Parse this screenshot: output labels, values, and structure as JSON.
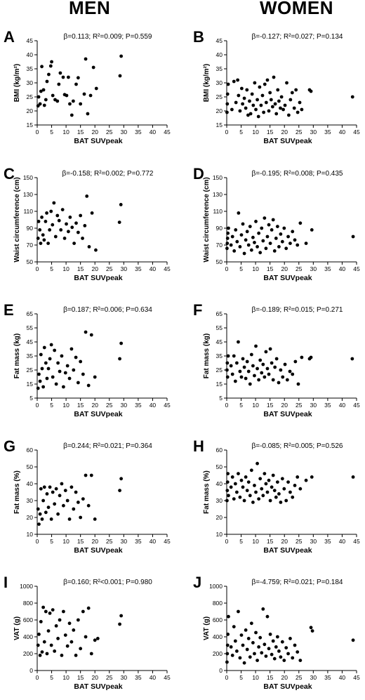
{
  "headers": {
    "men": "MEN",
    "women": "WOMEN"
  },
  "chart_data": [
    {
      "panel": "A",
      "group": "men",
      "type": "scatter",
      "stats": "β=0.113; R²=0.009; P=0.559",
      "ylabel": "BMI (kg/m²)",
      "xlabel": "BAT SUVpeak",
      "xlim": [
        0,
        45
      ],
      "xticks": [
        0,
        5,
        10,
        15,
        20,
        25,
        30,
        35,
        40,
        45
      ],
      "ylim": [
        15,
        45
      ],
      "yticks": [
        15,
        20,
        25,
        30,
        35,
        40,
        45
      ],
      "x": [
        0.3,
        0.5,
        1.0,
        1.3,
        1.6,
        2.2,
        2.5,
        3.0,
        3.4,
        4.0,
        4.7,
        5.0,
        5.4,
        6.2,
        7.0,
        7.5,
        8.0,
        9.0,
        9.5,
        10.2,
        10.8,
        11.3,
        12.0,
        12.5,
        13.5,
        14.2,
        15.0,
        16.3,
        16.8,
        17.5,
        18.5,
        19.5,
        20.5,
        28.7,
        29.1
      ],
      "y": [
        21.8,
        25.0,
        22.5,
        27.0,
        35.8,
        27.5,
        22.0,
        24.0,
        30.5,
        33.0,
        36.0,
        37.5,
        25.5,
        24.0,
        23.5,
        29.5,
        33.5,
        32.0,
        25.8,
        25.5,
        32.0,
        22.5,
        18.5,
        23.5,
        29.5,
        31.8,
        22.5,
        26.0,
        38.5,
        19.0,
        25.5,
        35.5,
        28.0,
        32.5,
        39.5
      ]
    },
    {
      "panel": "B",
      "group": "women",
      "type": "scatter",
      "stats": "β=-0.127; R²=0.027; P=0.134",
      "ylabel": "BMI (kg/m²)",
      "xlabel": "BAT SUVpeak",
      "xlim": [
        0,
        45
      ],
      "xticks": [
        0,
        5,
        10,
        15,
        20,
        25,
        30,
        35,
        40,
        45
      ],
      "ylim": [
        15,
        45
      ],
      "yticks": [
        15,
        20,
        25,
        30,
        35,
        40,
        45
      ],
      "x": [
        0.1,
        0.2,
        0.3,
        0.5,
        1.8,
        2.5,
        3.2,
        3.8,
        4.1,
        4.6,
        5.2,
        5.5,
        6.1,
        6.6,
        7.0,
        7.4,
        7.9,
        8.3,
        8.8,
        9.2,
        9.7,
        10.1,
        10.6,
        11.0,
        11.4,
        11.9,
        12.4,
        12.8,
        13.2,
        13.7,
        14.1,
        14.6,
        15.0,
        15.4,
        15.9,
        16.3,
        16.8,
        17.2,
        17.7,
        18.1,
        18.6,
        19.0,
        19.6,
        20.2,
        20.8,
        21.5,
        22.1,
        22.7,
        23.4,
        24.0,
        24.6,
        25.3,
        26.0,
        28.7,
        29.2,
        43.6
      ],
      "y": [
        19.5,
        22.5,
        26.0,
        29.5,
        20.5,
        30.5,
        23.0,
        31.0,
        25.5,
        20.0,
        28.0,
        22.5,
        24.5,
        21.0,
        27.5,
        18.5,
        23.5,
        19.0,
        26.0,
        22.0,
        30.0,
        20.5,
        24.0,
        18.0,
        28.5,
        22.0,
        25.5,
        19.5,
        29.5,
        23.0,
        31.0,
        20.0,
        26.5,
        24.0,
        21.5,
        32.0,
        22.5,
        19.0,
        27.5,
        23.5,
        21.0,
        25.0,
        20.5,
        22.0,
        30.0,
        18.5,
        24.0,
        26.5,
        21.0,
        27.5,
        19.5,
        23.0,
        20.5,
        27.5,
        27.0,
        25.0
      ]
    },
    {
      "panel": "C",
      "group": "men",
      "type": "scatter",
      "stats": "β=-0.158; R²=0.002; P=0.772",
      "ylabel": "Waist circumference (cm)",
      "xlabel": "BAT SUVpeak",
      "xlim": [
        0,
        45
      ],
      "xticks": [
        0,
        5,
        10,
        15,
        20,
        25,
        30,
        35,
        40,
        45
      ],
      "ylim": [
        50,
        150
      ],
      "yticks": [
        50,
        70,
        90,
        110,
        130,
        150
      ],
      "x": [
        0.3,
        0.5,
        0.9,
        1.2,
        1.6,
        2.0,
        2.4,
        2.9,
        3.3,
        3.8,
        4.3,
        4.8,
        5.3,
        5.8,
        6.4,
        7.0,
        7.6,
        8.2,
        8.8,
        9.5,
        10.1,
        10.8,
        11.4,
        12.1,
        12.8,
        13.5,
        14.2,
        15.0,
        15.7,
        16.5,
        17.2,
        18.0,
        19.0,
        20.3,
        28.5,
        29.0
      ],
      "y": [
        78,
        98,
        88,
        72,
        103,
        82,
        76,
        98,
        108,
        72,
        88,
        110,
        94,
        120,
        80,
        105,
        99,
        88,
        112,
        78,
        95,
        86,
        103,
        91,
        72,
        96,
        85,
        105,
        78,
        93,
        128,
        68,
        108,
        64,
        97,
        118
      ]
    },
    {
      "panel": "D",
      "group": "women",
      "type": "scatter",
      "stats": "β=-0.195; R²=0.008; P=0.435",
      "ylabel": "Waist circumference (cm)",
      "xlabel": "BAT SUVpeak",
      "xlim": [
        0,
        45
      ],
      "xticks": [
        0,
        5,
        10,
        15,
        20,
        25,
        30,
        35,
        40,
        45
      ],
      "ylim": [
        50,
        150
      ],
      "yticks": [
        50,
        70,
        90,
        110,
        130,
        150
      ],
      "x": [
        0.1,
        0.2,
        0.3,
        0.4,
        0.6,
        1.5,
        2.0,
        2.6,
        3.1,
        3.6,
        4.1,
        4.6,
        5.1,
        5.6,
        6.1,
        6.6,
        7.1,
        7.6,
        8.1,
        8.6,
        9.1,
        9.6,
        10.1,
        10.6,
        11.1,
        11.6,
        12.1,
        12.6,
        13.1,
        13.6,
        14.1,
        14.6,
        15.1,
        15.6,
        16.1,
        16.6,
        17.1,
        17.6,
        18.1,
        18.7,
        19.3,
        19.9,
        20.6,
        21.3,
        22.0,
        22.8,
        23.6,
        24.5,
        25.5,
        27.5,
        29.5,
        43.8
      ],
      "y": [
        66,
        72,
        78,
        84,
        90,
        70,
        80,
        63,
        88,
        74,
        108,
        68,
        82,
        95,
        60,
        76,
        86,
        70,
        92,
        64,
        79,
        73,
        98,
        68,
        84,
        61,
        90,
        75,
        102,
        66,
        80,
        94,
        72,
        88,
        100,
        63,
        78,
        92,
        68,
        83,
        74,
        90,
        66,
        80,
        72,
        86,
        76,
        70,
        96,
        72,
        88,
        80
      ]
    },
    {
      "panel": "E",
      "group": "men",
      "type": "scatter",
      "stats": "β=0.187; R²=0.006; P=0.634",
      "ylabel": "Fat mass (kg)",
      "xlabel": "BAT SUVpeak",
      "xlim": [
        0,
        45
      ],
      "xticks": [
        0,
        5,
        10,
        15,
        20,
        25,
        30,
        35,
        40,
        45
      ],
      "ylim": [
        5,
        65
      ],
      "yticks": [
        5,
        15,
        25,
        35,
        45,
        55,
        65
      ],
      "x": [
        0.3,
        0.6,
        1.0,
        1.3,
        1.7,
        2.1,
        2.5,
        3.0,
        3.4,
        3.9,
        4.4,
        4.9,
        5.4,
        6.0,
        6.6,
        7.2,
        7.8,
        8.5,
        9.1,
        9.8,
        10.5,
        11.2,
        11.9,
        12.6,
        13.4,
        14.2,
        15.0,
        15.9,
        16.8,
        17.8,
        18.8,
        20.0,
        28.6,
        29.1
      ],
      "y": [
        12,
        22,
        17,
        36,
        26,
        13,
        41,
        30,
        19,
        26,
        33,
        43,
        20,
        39,
        15,
        30,
        24,
        35,
        13,
        23,
        28,
        19,
        40,
        25,
        34,
        16,
        31,
        22,
        52,
        14,
        50,
        20,
        33,
        44
      ]
    },
    {
      "panel": "F",
      "group": "women",
      "type": "scatter",
      "stats": "β=-0.189; R²=0.015; P=0.271",
      "ylabel": "Fat mass (kg)",
      "xlabel": "BAT SUVpeak",
      "xlim": [
        0,
        45
      ],
      "xticks": [
        0,
        5,
        10,
        15,
        20,
        25,
        30,
        35,
        40,
        45
      ],
      "ylim": [
        5,
        65
      ],
      "yticks": [
        5,
        15,
        25,
        35,
        45,
        55,
        65
      ],
      "x": [
        0.1,
        0.2,
        0.3,
        0.5,
        1.5,
        2.0,
        2.5,
        3.0,
        3.5,
        4.0,
        4.6,
        5.1,
        5.6,
        6.1,
        6.6,
        7.1,
        7.6,
        8.1,
        8.6,
        9.1,
        9.6,
        10.1,
        10.6,
        11.1,
        11.6,
        12.1,
        12.6,
        13.1,
        13.6,
        14.1,
        14.6,
        15.1,
        15.6,
        16.1,
        16.7,
        17.3,
        18.0,
        18.7,
        19.4,
        20.2,
        21.0,
        21.9,
        22.8,
        23.8,
        24.8,
        26.0,
        28.7,
        29.2,
        43.5
      ],
      "y": [
        25,
        30,
        20,
        35,
        28,
        22,
        35,
        17,
        30,
        45,
        24,
        20,
        33,
        27,
        19,
        31,
        24,
        15,
        36,
        28,
        21,
        42,
        26,
        18,
        32,
        23,
        29,
        20,
        38,
        26,
        22,
        40,
        30,
        18,
        27,
        33,
        16,
        25,
        20,
        29,
        18,
        24,
        22,
        31,
        15,
        34,
        33,
        34,
        33
      ]
    },
    {
      "panel": "G",
      "group": "men",
      "type": "scatter",
      "stats": "β=0.244; R²=0.021; P=0.364",
      "ylabel": "Fat mass (%)",
      "xlabel": "BAT SUVpeak",
      "xlim": [
        0,
        45
      ],
      "xticks": [
        0,
        5,
        10,
        15,
        20,
        25,
        30,
        35,
        40,
        45
      ],
      "ylim": [
        10,
        60
      ],
      "yticks": [
        10,
        20,
        30,
        40,
        50,
        60
      ],
      "x": [
        0.3,
        0.6,
        1.0,
        1.3,
        1.7,
        2.1,
        2.5,
        3.0,
        3.4,
        3.9,
        4.4,
        4.9,
        5.4,
        6.0,
        6.6,
        7.2,
        7.8,
        8.5,
        9.1,
        9.8,
        10.5,
        11.2,
        11.9,
        12.6,
        13.4,
        14.2,
        15.0,
        15.9,
        16.8,
        17.8,
        18.8,
        20.0,
        28.6,
        29.1
      ],
      "y": [
        25,
        16,
        22,
        37,
        19,
        30,
        38,
        23,
        34,
        26,
        38,
        19,
        35,
        28,
        37,
        22,
        33,
        40,
        27,
        36,
        30,
        19,
        38,
        25,
        35,
        29,
        20,
        31,
        45,
        27,
        45,
        19,
        36,
        43
      ]
    },
    {
      "panel": "H",
      "group": "women",
      "type": "scatter",
      "stats": "β=-0.085; R²=0.005; P=0.526",
      "ylabel": "Fat mass (%)",
      "xlabel": "BAT SUVpeak",
      "xlim": [
        0,
        45
      ],
      "xticks": [
        0,
        5,
        10,
        15,
        20,
        25,
        30,
        35,
        40,
        45
      ],
      "ylim": [
        10,
        60
      ],
      "yticks": [
        10,
        20,
        30,
        40,
        50,
        60
      ],
      "x": [
        0.1,
        0.2,
        0.3,
        0.4,
        0.6,
        1.5,
        2.0,
        2.5,
        3.0,
        3.5,
        4.0,
        4.6,
        5.1,
        5.6,
        6.1,
        6.6,
        7.1,
        7.6,
        8.1,
        8.6,
        9.1,
        9.6,
        10.1,
        10.6,
        11.1,
        11.6,
        12.1,
        12.6,
        13.1,
        13.6,
        14.1,
        14.6,
        15.1,
        15.6,
        16.1,
        16.6,
        17.1,
        17.6,
        18.1,
        18.7,
        19.3,
        19.9,
        20.6,
        21.3,
        22.0,
        22.8,
        23.6,
        24.5,
        25.5,
        27.5,
        29.5,
        43.8
      ],
      "y": [
        30,
        36,
        41,
        46,
        33,
        38,
        44,
        31,
        40,
        35,
        46,
        32,
        42,
        38,
        30,
        44,
        36,
        41,
        33,
        48,
        29,
        39,
        35,
        52,
        31,
        43,
        37,
        33,
        46,
        40,
        35,
        42,
        30,
        38,
        45,
        36,
        32,
        41,
        34,
        29,
        43,
        37,
        30,
        41,
        35,
        32,
        39,
        44,
        37,
        42,
        44,
        44
      ]
    },
    {
      "panel": "I",
      "group": "men",
      "type": "scatter",
      "stats": "β=0.160; R²<0.001; P=0.980",
      "ylabel": "VAT (g)",
      "xlabel": "BAT SUVpeak",
      "xlim": [
        0,
        45
      ],
      "xticks": [
        0,
        5,
        10,
        15,
        20,
        25,
        30,
        35,
        40,
        45
      ],
      "ylim": [
        0,
        1000
      ],
      "yticks": [
        0,
        200,
        400,
        600,
        800,
        1000
      ],
      "x": [
        0.3,
        0.6,
        1.0,
        1.3,
        1.7,
        2.1,
        2.5,
        3.0,
        3.4,
        3.9,
        4.4,
        4.9,
        5.4,
        6.0,
        6.6,
        7.2,
        7.8,
        8.5,
        9.1,
        9.8,
        10.5,
        11.2,
        11.9,
        12.6,
        13.4,
        14.2,
        15.0,
        15.9,
        16.8,
        17.8,
        18.8,
        20.0,
        21.0,
        28.6,
        29.1
      ],
      "y": [
        300,
        430,
        180,
        580,
        220,
        750,
        340,
        700,
        200,
        470,
        680,
        300,
        720,
        230,
        530,
        380,
        600,
        180,
        700,
        420,
        290,
        560,
        340,
        480,
        180,
        600,
        260,
        700,
        400,
        740,
        200,
        360,
        380,
        550,
        650
      ]
    },
    {
      "panel": "J",
      "group": "women",
      "type": "scatter",
      "stats": "β=-4.759; R²=0.021; P=0.184",
      "ylabel": "VAT (g)",
      "xlabel": "BAT SUVpeak",
      "xlim": [
        0,
        45
      ],
      "xticks": [
        0,
        5,
        10,
        15,
        20,
        25,
        30,
        35,
        40,
        45
      ],
      "ylim": [
        0,
        1000
      ],
      "yticks": [
        0,
        200,
        400,
        600,
        800,
        1000
      ],
      "x": [
        0.1,
        0.2,
        0.3,
        0.4,
        0.6,
        1.5,
        2.0,
        2.5,
        3.0,
        3.5,
        4.0,
        4.6,
        5.1,
        5.6,
        6.1,
        6.6,
        7.1,
        7.6,
        8.1,
        8.6,
        9.1,
        9.6,
        10.1,
        10.6,
        11.1,
        11.6,
        12.1,
        12.6,
        13.1,
        13.6,
        14.1,
        14.6,
        15.1,
        15.6,
        16.1,
        16.6,
        17.1,
        17.6,
        18.1,
        18.7,
        19.3,
        19.9,
        20.6,
        21.3,
        22.0,
        22.8,
        23.6,
        24.5,
        25.5,
        29.2,
        29.7,
        43.8
      ],
      "y": [
        100,
        200,
        300,
        430,
        640,
        280,
        180,
        520,
        350,
        230,
        700,
        150,
        420,
        300,
        90,
        480,
        250,
        380,
        160,
        560,
        330,
        200,
        450,
        120,
        280,
        390,
        210,
        730,
        310,
        170,
        640,
        260,
        430,
        190,
        350,
        140,
        280,
        400,
        230,
        160,
        340,
        120,
        270,
        200,
        380,
        150,
        300,
        220,
        120,
        510,
        470,
        360
      ]
    }
  ]
}
